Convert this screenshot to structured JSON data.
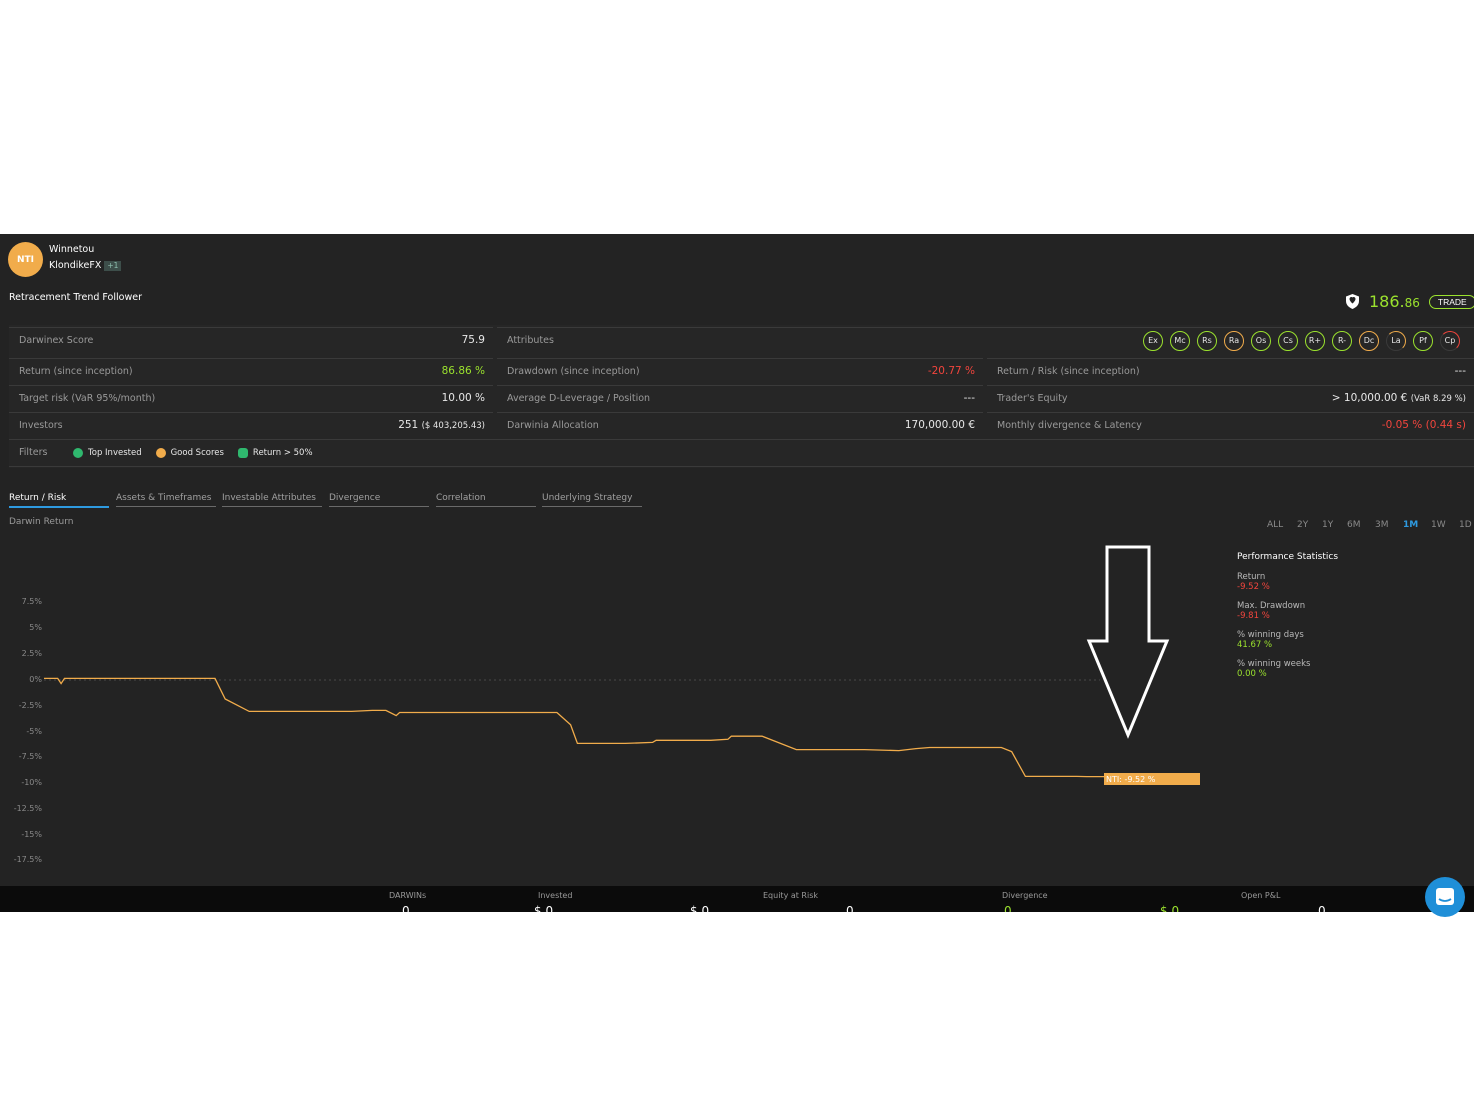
{
  "header": {
    "avatar_text": "NTI",
    "darwin_name": "Winnetou",
    "trader_name": "KlondikeFX",
    "trader_tag": "+1",
    "strategy": "Retracement Trend Follower",
    "price_int": "186.",
    "price_dec": "86",
    "trade_label": "TRADE"
  },
  "stats": {
    "score_label": "Darwinex Score",
    "score_value": "75.9",
    "attributes_label": "Attributes",
    "attributes": [
      "Ex",
      "Mc",
      "Rs",
      "Ra",
      "Os",
      "Cs",
      "R+",
      "R-",
      "Dc",
      "La",
      "Pf",
      "Cp"
    ],
    "return_label": "Return (since inception)",
    "return_value": "86.86 %",
    "drawdown_label": "Drawdown (since inception)",
    "drawdown_value": "-20.77 %",
    "return_risk_label": "Return / Risk (since inception)",
    "return_risk_value": "---",
    "target_risk_label": "Target risk (VaR 95%/month)",
    "target_risk_value": "10.00 %",
    "leverage_label": "Average D-Leverage / Position",
    "leverage_value": "---",
    "equity_label": "Trader's Equity",
    "equity_value": "> 10,000.00 €",
    "equity_var": "(VaR 8.29 %)",
    "investors_label": "Investors",
    "investors_value": "251",
    "investors_amount": "($ 403,205.43)",
    "allocation_label": "Darwinia Allocation",
    "allocation_value": "170,000.00 €",
    "divergence_label": "Monthly divergence & Latency",
    "divergence_value": "-0.05 % (0.44 s)",
    "filters_label": "Filters",
    "filters": [
      "Top Invested",
      "Good Scores",
      "Return > 50%"
    ]
  },
  "tabs": [
    "Return / Risk",
    "Assets & Timeframes",
    "Investable Attributes",
    "Divergence",
    "Correlation",
    "Underlying Strategy"
  ],
  "chart_section": {
    "label": "Darwin Return",
    "ranges": [
      "ALL",
      "2Y",
      "1Y",
      "6M",
      "3M",
      "1M",
      "1W",
      "1D"
    ],
    "active_range": "1M"
  },
  "chart_data": {
    "type": "line",
    "title": "",
    "y_ticks": [
      "7.5%",
      "5%",
      "2.5%",
      "0%",
      "-2.5%",
      "-5%",
      "-7.5%",
      "-10%",
      "-12.5%",
      "-15%",
      "-17.5%"
    ],
    "ylim": [
      -17.5,
      7.5
    ],
    "series": [
      {
        "name": "NTI",
        "color": "#f1ac4b",
        "x": [
          0,
          0.4,
          0.5,
          0.6,
          0.7,
          1,
          2,
          2.5,
          3,
          4,
          5,
          5.3,
          6,
          7,
          8,
          9,
          9.6,
          10,
          10.3,
          10.4,
          11,
          13,
          13.2,
          13.8,
          14,
          15,
          15.4,
          15.6,
          16,
          17,
          17.8,
          17.9,
          18,
          19,
          19.5,
          20,
          20.1,
          20.3,
          21,
          22,
          23,
          23.1,
          23.4,
          24,
          25,
          25.5,
          25.9,
          26,
          26.5,
          27,
          28,
          28.3,
          28.7,
          29,
          30,
          30.2,
          30.5,
          31
        ],
        "y": [
          0,
          0,
          -0.5,
          0,
          0,
          0,
          0,
          0,
          0,
          0,
          0,
          -2,
          -3.2,
          -3.2,
          -3.2,
          -3.2,
          -3.1,
          -3.1,
          -3.6,
          -3.3,
          -3.3,
          -3.3,
          -3.3,
          -3.3,
          -3.3,
          -3.3,
          -4.5,
          -6.3,
          -6.3,
          -6.3,
          -6.2,
          -6,
          -6,
          -6,
          -6,
          -5.9,
          -5.6,
          -5.6,
          -5.6,
          -6.9,
          -6.9,
          -6.9,
          -6.9,
          -6.9,
          -7,
          -6.8,
          -6.7,
          -6.7,
          -6.7,
          -6.7,
          -6.7,
          -7.1,
          -9.5,
          -9.5,
          -9.5,
          -9.5,
          -9.52,
          -9.52
        ]
      }
    ],
    "end_label": "NTI: -9.52 %"
  },
  "performance": {
    "title": "Performance Statistics",
    "items": [
      {
        "label": "Return",
        "value": "-9.52 %",
        "color": "#f2453d"
      },
      {
        "label": "Max. Drawdown",
        "value": "-9.81 %",
        "color": "#f2453d"
      },
      {
        "label": "% winning days",
        "value": "41.67 %",
        "color": "#9be22e"
      },
      {
        "label": "% winning weeks",
        "value": "0.00 %",
        "color": "#9be22e"
      }
    ]
  },
  "bottom_bar": {
    "darwins_label": "DARWINs",
    "invested_label": "Invested",
    "equity_risk_label": "Equity at Risk",
    "divergence_label": "Divergence",
    "pnl_label": "Open P&L",
    "darwins_value": "0",
    "invested_value": "$ 0",
    "invested_value_2": "$ 0",
    "equity_risk_value": "0",
    "divergence_value": "0",
    "divergence_value_2": "$ 0",
    "pnl_value": "0"
  },
  "colors": {
    "accent": "#9be22e",
    "negative": "#f2453d",
    "brand": "#f1ac4b",
    "link": "#2e9ae0"
  }
}
